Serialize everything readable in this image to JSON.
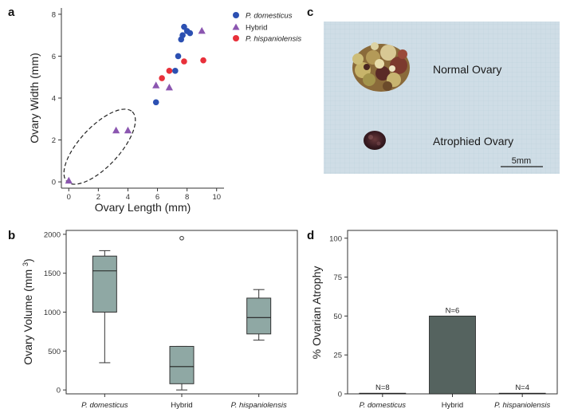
{
  "panel_letters": {
    "a": "a",
    "b": "b",
    "c": "c",
    "d": "d"
  },
  "colors": {
    "domesticus": "#2c50b2",
    "hybrid": "#8b56b0",
    "hispaniolensis": "#e8303a",
    "box_fill": "#8fa8a4",
    "bar_fill": "#55635f",
    "photo_bg": "#cfdde6"
  },
  "chart_data": [
    {
      "type": "scatter",
      "title": "",
      "xlabel": "Ovary Length (mm)",
      "ylabel": "Ovary Width (mm)",
      "xlim": [
        -0.5,
        10.5
      ],
      "ylim": [
        -0.3,
        8.3
      ],
      "xticks": [
        0,
        2,
        4,
        6,
        8,
        10
      ],
      "yticks": [
        0,
        2,
        4,
        6,
        8
      ],
      "legend": "top-right",
      "series": [
        {
          "name": "P. domesticus",
          "marker": "circle",
          "points": [
            [
              5.9,
              3.8
            ],
            [
              7.2,
              5.3
            ],
            [
              7.4,
              6.0
            ],
            [
              7.6,
              6.8
            ],
            [
              7.7,
              7.0
            ],
            [
              7.8,
              7.4
            ],
            [
              8.0,
              7.2
            ],
            [
              8.2,
              7.1
            ]
          ]
        },
        {
          "name": "Hybrid",
          "marker": "triangle",
          "points": [
            [
              0.0,
              0.05
            ],
            [
              3.2,
              2.45
            ],
            [
              4.0,
              2.45
            ],
            [
              5.9,
              4.6
            ],
            [
              6.8,
              4.5
            ],
            [
              9.0,
              7.2
            ]
          ]
        },
        {
          "name": "P. hispaniolensis",
          "marker": "circle",
          "points": [
            [
              6.3,
              4.95
            ],
            [
              6.8,
              5.3
            ],
            [
              7.8,
              5.75
            ],
            [
              9.1,
              5.8
            ]
          ]
        }
      ],
      "annotation": "dashed ellipse around atrophied ovaries"
    },
    {
      "type": "box",
      "title": "",
      "xlabel": "",
      "ylabel": "Ovary Volume (mm³)",
      "ylim": [
        -50,
        2050
      ],
      "yticks": [
        0,
        500,
        1000,
        1500,
        2000
      ],
      "categories": [
        "P. domesticus",
        "Hybrid",
        "P. hispaniolensis"
      ],
      "boxes": [
        {
          "min": 350,
          "q1": 1000,
          "median": 1530,
          "q3": 1720,
          "max": 1790,
          "outliers": []
        },
        {
          "min": 0,
          "q1": 80,
          "median": 300,
          "q3": 560,
          "max": 560,
          "outliers": [
            1950
          ]
        },
        {
          "min": 640,
          "q1": 720,
          "median": 930,
          "q3": 1180,
          "max": 1290,
          "outliers": []
        }
      ]
    },
    {
      "type": "bar",
      "title": "",
      "xlabel": "",
      "ylabel": "% Ovarian Atrophy",
      "ylim": [
        0,
        105
      ],
      "yticks": [
        0,
        25,
        50,
        75,
        100
      ],
      "categories": [
        "P. domesticus",
        "Hybrid",
        "P. hispaniolensis"
      ],
      "values": [
        0,
        50,
        0
      ],
      "n_labels": [
        "N=8",
        "N=6",
        "N=4"
      ]
    }
  ],
  "photo": {
    "normal_label": "Normal Ovary",
    "atrophied_label": "Atrophied Ovary",
    "scale_label": "5mm"
  }
}
